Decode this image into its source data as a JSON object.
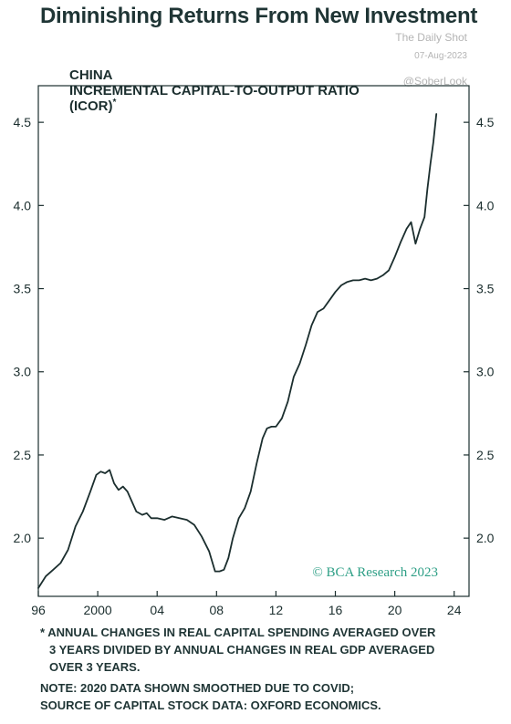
{
  "header": {
    "title": "Diminishing Returns From New Investment"
  },
  "watermark": {
    "line1": "The Daily Shot",
    "line2": "07-Aug-2023",
    "line3": "@SoberLook"
  },
  "footnotes": {
    "asterisk": "* ANNUAL CHANGES IN REAL CAPITAL SPENDING AVERAGED OVER",
    "asterisk_2": "3 YEARS DIVIDED BY ANNUAL CHANGES IN REAL GDP AVERAGED",
    "asterisk_3": "OVER 3 YEARS.",
    "note_1": "NOTE: 2020 DATA SHOWN SMOOTHED DUE TO COVID;",
    "note_2": "SOURCE OF CAPITAL STOCK DATA: OXFORD ECONOMICS."
  },
  "chart_data": {
    "type": "line",
    "title_lines": [
      "CHINA",
      "INCREMENTAL CAPITAL-TO-OUTPUT RATIO",
      "(ICOR)"
    ],
    "title_superscript": "*",
    "credit": "© BCA Research 2023",
    "xlabel": "",
    "ylabel": "",
    "xlim": [
      1996,
      2025
    ],
    "ylim": [
      1.65,
      4.72
    ],
    "x_ticks": [
      1996,
      2000,
      2004,
      2008,
      2012,
      2016,
      2020,
      2024
    ],
    "x_tick_labels": [
      "96",
      "2000",
      "04",
      "08",
      "12",
      "16",
      "20",
      "24"
    ],
    "y_ticks": [
      2.0,
      2.5,
      3.0,
      3.5,
      4.0,
      4.5
    ],
    "y_tick_labels": [
      "2.0",
      "2.5",
      "3.0",
      "3.5",
      "4.0",
      "4.5"
    ],
    "grid": false,
    "series_color": "#1b2e2e",
    "series": [
      {
        "name": "",
        "x": [
          1996.0,
          1996.5,
          1997.0,
          1997.5,
          1998.0,
          1998.5,
          1999.0,
          1999.5,
          1999.9,
          2000.2,
          2000.5,
          2000.8,
          2001.1,
          2001.4,
          2001.7,
          2002.0,
          2002.3,
          2002.6,
          2003.0,
          2003.3,
          2003.6,
          2004.0,
          2004.5,
          2005.0,
          2005.5,
          2006.0,
          2006.5,
          2007.0,
          2007.5,
          2007.9,
          2008.2,
          2008.5,
          2008.8,
          2009.1,
          2009.5,
          2009.9,
          2010.3,
          2010.7,
          2011.1,
          2011.4,
          2011.7,
          2012.0,
          2012.4,
          2012.8,
          2013.2,
          2013.6,
          2014.0,
          2014.4,
          2014.8,
          2015.2,
          2015.6,
          2016.0,
          2016.4,
          2016.8,
          2017.2,
          2017.6,
          2018.0,
          2018.4,
          2018.8,
          2019.2,
          2019.6,
          2020.0,
          2020.4,
          2020.8,
          2021.1,
          2021.4,
          2021.7,
          2022.0,
          2022.2,
          2022.4,
          2022.6,
          2022.8
        ],
        "values": [
          1.7,
          1.77,
          1.81,
          1.85,
          1.93,
          2.07,
          2.16,
          2.28,
          2.38,
          2.4,
          2.39,
          2.41,
          2.33,
          2.29,
          2.31,
          2.28,
          2.22,
          2.16,
          2.14,
          2.15,
          2.12,
          2.12,
          2.11,
          2.13,
          2.12,
          2.11,
          2.08,
          2.01,
          1.92,
          1.8,
          1.8,
          1.81,
          1.88,
          2.0,
          2.12,
          2.18,
          2.28,
          2.45,
          2.6,
          2.66,
          2.67,
          2.67,
          2.72,
          2.82,
          2.97,
          3.05,
          3.16,
          3.28,
          3.36,
          3.38,
          3.43,
          3.48,
          3.52,
          3.54,
          3.55,
          3.55,
          3.56,
          3.55,
          3.56,
          3.58,
          3.61,
          3.69,
          3.78,
          3.86,
          3.9,
          3.77,
          3.86,
          3.93,
          4.1,
          4.25,
          4.38,
          4.55
        ]
      }
    ]
  }
}
